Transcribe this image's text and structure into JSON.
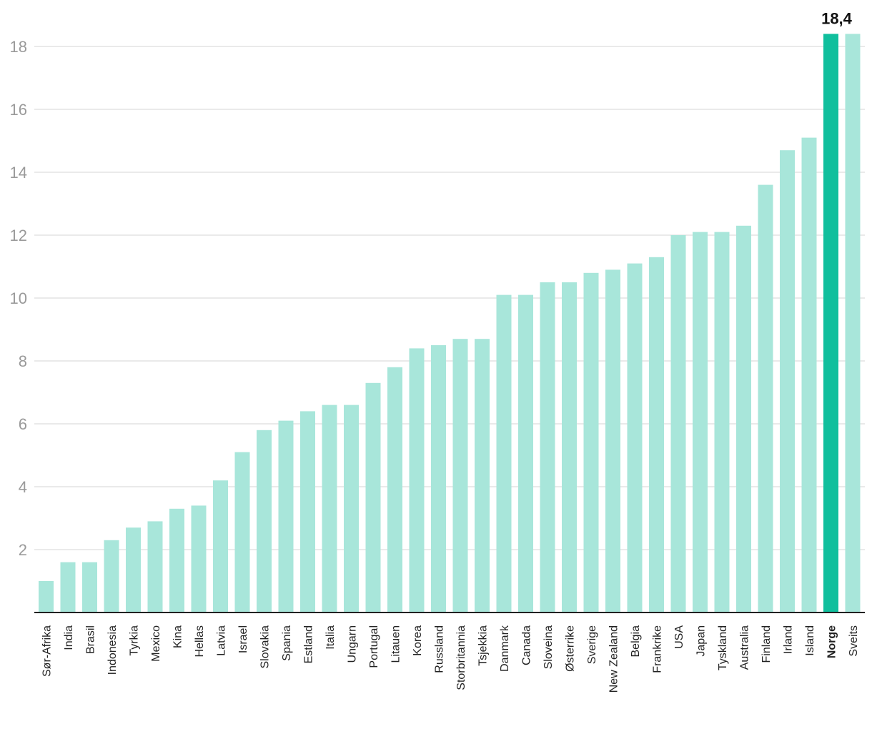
{
  "chart_data": {
    "type": "bar",
    "title": "",
    "xlabel": "",
    "ylabel": "",
    "ylim": [
      0,
      18.4
    ],
    "yticks": [
      2,
      4,
      6,
      8,
      10,
      12,
      14,
      16,
      18
    ],
    "grid": true,
    "legend": "none",
    "colors": {
      "bar": "#a8e6da",
      "highlight": "#10bf9d",
      "grid": "#e3e3e3",
      "axis": "#222222"
    },
    "highlight_category": "Norge",
    "data_labels": [
      {
        "category": "Norge",
        "text": "18,4"
      }
    ],
    "categories": [
      "Sør-Afrika",
      "India",
      "Brasil",
      "Indonesia",
      "Tyrkia",
      "Mexico",
      "Kina",
      "Hellas",
      "Latvia",
      "Israel",
      "Slovakia",
      "Spania",
      "Estland",
      "Italia",
      "Ungarn",
      "Portugal",
      "Litauen",
      "Korea",
      "Russland",
      "Storbritannia",
      "Tsjekkia",
      "Danmark",
      "Canada",
      "Sloveina",
      "Østerrike",
      "Sverige",
      "New Zealand",
      "Belgia",
      "Frankrike",
      "USA",
      "Japan",
      "Tyskland",
      "Australia",
      "Finland",
      "Irland",
      "Island",
      "Norge",
      "Sveits"
    ],
    "values": [
      1.0,
      1.6,
      1.6,
      2.3,
      2.7,
      2.9,
      3.3,
      3.4,
      4.2,
      5.1,
      5.8,
      6.1,
      6.4,
      6.6,
      6.6,
      7.3,
      7.8,
      8.4,
      8.5,
      8.7,
      8.7,
      10.1,
      10.1,
      10.5,
      10.5,
      10.8,
      10.9,
      11.1,
      11.3,
      12.0,
      12.1,
      12.1,
      12.3,
      13.6,
      14.7,
      15.1,
      18.4,
      18.4
    ]
  }
}
